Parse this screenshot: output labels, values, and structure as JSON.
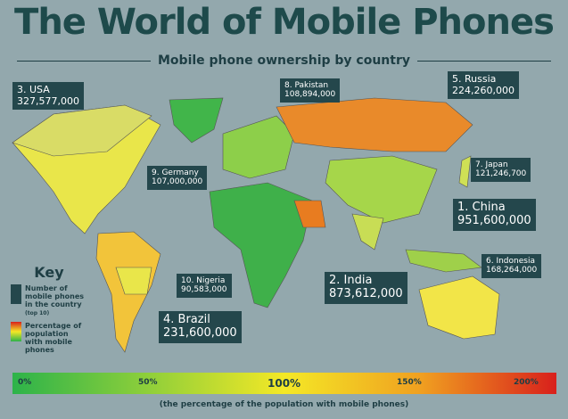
{
  "title": "The World of Mobile Phones",
  "subtitle": "Mobile phone ownership by country",
  "callouts": [
    {
      "label": "3. USA",
      "value": "327,577,000"
    },
    {
      "label": "8. Pakistan",
      "value": "108,894,000"
    },
    {
      "label": "5. Russia",
      "value": "224,260,000"
    },
    {
      "label": "9. Germany",
      "value": "107,000,000"
    },
    {
      "label": "7. Japan",
      "value": "121,246,700"
    },
    {
      "label": "1. China",
      "value": "951,600,000"
    },
    {
      "label": "6. Indonesia",
      "value": "168,264,000"
    },
    {
      "label": "10. Nigeria",
      "value": "90,583,000"
    },
    {
      "label": "2. India",
      "value": "873,612,000"
    },
    {
      "label": "4. Brazil",
      "value": "231,600,000"
    }
  ],
  "key": {
    "title": "Key",
    "phones": "Number of mobile phones in the country",
    "top": "(top 10)",
    "percentage": "Percentage of population with mobile phones"
  },
  "scale": {
    "ticks": [
      "0%",
      "50%",
      "100%",
      "150%",
      "200%"
    ],
    "caption": "(the percentage of the population with mobile phones)"
  }
}
